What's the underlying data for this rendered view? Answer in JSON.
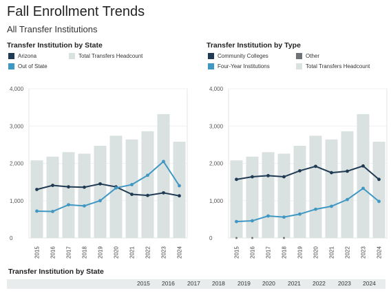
{
  "header": {
    "title": "Fall Enrollment Trends",
    "subtitle": "All Transfer Institutions"
  },
  "left_panel": {
    "title": "Transfer Institution by State",
    "legend": [
      {
        "label": "Arizona",
        "color": "#1f3a52"
      },
      {
        "label": "Out of State",
        "color": "#3f97c3"
      },
      {
        "label": "Total Transfers Headcount",
        "color": "#d9e1e1"
      }
    ]
  },
  "right_panel": {
    "title": "Transfer Institution by Type",
    "legend": [
      {
        "label": "Community Colleges",
        "color": "#1f3a52"
      },
      {
        "label": "Other",
        "color": "#6e7378"
      },
      {
        "label": "Four-Year Institutions",
        "color": "#3f97c3"
      },
      {
        "label": "Total Transfers Headcount",
        "color": "#d9e1e1"
      }
    ]
  },
  "bottom": {
    "title": "Transfer Institution by State",
    "years": [
      "2015",
      "2016",
      "2017",
      "2018",
      "2019",
      "2020",
      "2021",
      "2022",
      "2023",
      "2024"
    ]
  },
  "chart_data": [
    {
      "type": "bar",
      "title": "Transfer Institution by State",
      "categories": [
        "2015",
        "2016",
        "2017",
        "2018",
        "2019",
        "2020",
        "2021",
        "2022",
        "2023",
        "2024"
      ],
      "ylim": [
        0,
        4000
      ],
      "yticks": [
        "0",
        "1,000",
        "2,000",
        "3,000",
        "4,000"
      ],
      "bars": {
        "name": "Total Transfers Headcount",
        "color": "#d9e1e1",
        "values": [
          2080,
          2180,
          2300,
          2260,
          2470,
          2740,
          2640,
          2860,
          3320,
          2580
        ]
      },
      "series": [
        {
          "name": "Arizona",
          "color": "#1f3a52",
          "values": [
            1300,
            1410,
            1370,
            1360,
            1450,
            1370,
            1170,
            1140,
            1210,
            1130
          ]
        },
        {
          "name": "Out of State",
          "color": "#3f97c3",
          "values": [
            720,
            710,
            890,
            860,
            1000,
            1340,
            1430,
            1680,
            2050,
            1400
          ]
        }
      ]
    },
    {
      "type": "bar",
      "title": "Transfer Institution by Type",
      "categories": [
        "2015",
        "2016",
        "2017",
        "2018",
        "2019",
        "2020",
        "2021",
        "2022",
        "2023",
        "2024"
      ],
      "ylim": [
        0,
        4000
      ],
      "yticks": [
        "0",
        "1,000",
        "2,000",
        "3,000",
        "4,000"
      ],
      "bars": {
        "name": "Total Transfers Headcount",
        "color": "#d9e1e1",
        "values": [
          2080,
          2180,
          2300,
          2260,
          2470,
          2740,
          2640,
          2860,
          3320,
          2580
        ]
      },
      "series": [
        {
          "name": "Community Colleges",
          "color": "#1f3a52",
          "values": [
            1570,
            1640,
            1670,
            1640,
            1800,
            1920,
            1750,
            1790,
            1930,
            1570
          ]
        },
        {
          "name": "Four-Year Institutions",
          "color": "#3f97c3",
          "values": [
            440,
            460,
            590,
            560,
            640,
            770,
            850,
            1030,
            1330,
            980
          ]
        },
        {
          "name": "Other",
          "color": "#6e7378",
          "values": [
            0,
            0,
            null,
            0,
            null,
            null,
            null,
            null,
            null,
            null
          ]
        }
      ]
    }
  ]
}
